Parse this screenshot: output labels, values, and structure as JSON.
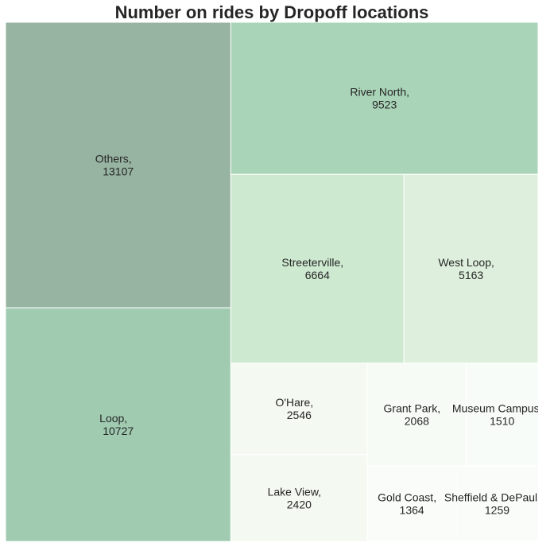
{
  "chart_data": {
    "type": "treemap",
    "title": "Number on rides by Dropoff locations",
    "items": [
      {
        "label": "Others",
        "value": 13107,
        "color": "#97b3a1"
      },
      {
        "label": "Loop",
        "value": 10727,
        "color": "#a0cbb1"
      },
      {
        "label": "River North",
        "value": 9523,
        "color": "#a9d4b8"
      },
      {
        "label": "Streeterville",
        "value": 6664,
        "color": "#cde9d0"
      },
      {
        "label": "West Loop",
        "value": 5163,
        "color": "#def0dd"
      },
      {
        "label": "O'Hare",
        "value": 2546,
        "color": "#f4faf2"
      },
      {
        "label": "Lake View",
        "value": 2420,
        "color": "#f4faf2"
      },
      {
        "label": "Grant Park",
        "value": 2068,
        "color": "#f6fbf5"
      },
      {
        "label": "Museum Campus",
        "value": 1510,
        "color": "#f8fcf8"
      },
      {
        "label": "Gold Coast",
        "value": 1364,
        "color": "#f9fcf9"
      },
      {
        "label": "Sheffield & DePaul",
        "value": 1259,
        "color": "#f9fcf9"
      }
    ]
  }
}
